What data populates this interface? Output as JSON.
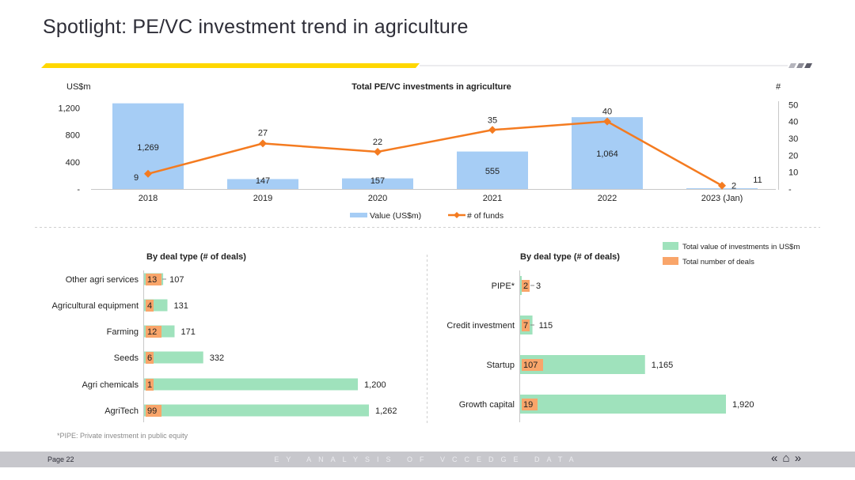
{
  "title": "Spotlight: PE/VC investment trend in agriculture",
  "footnote": "*PIPE: Private investment in public equity",
  "footer": {
    "page": "Page 22",
    "center_text": "EY ANALYSIS OF VCCEDGE DATA",
    "nav_prev": "«",
    "nav_home": "⌂",
    "nav_next": "»"
  },
  "colors": {
    "bar_blue": "#a6cdf5",
    "line_orange": "#f47b20",
    "bar_green": "#9fe2bc",
    "bar_orange": "#f9a56a",
    "accent_yellow": "#ffd700"
  },
  "chart_data": [
    {
      "type": "bar",
      "title": "Total PE/VC investments in agriculture",
      "ylabel": "US$m",
      "y2label": "#",
      "categories": [
        "2018",
        "2019",
        "2020",
        "2021",
        "2022",
        "2023 (Jan)"
      ],
      "y_ticks": [
        "-",
        "400",
        "800",
        "1,200"
      ],
      "y2_ticks": [
        "-",
        "10",
        "20",
        "30",
        "40",
        "50"
      ],
      "ylim": [
        0,
        1300
      ],
      "y2lim": [
        0,
        52
      ],
      "series": [
        {
          "name": "Value (US$m)",
          "type": "bar",
          "values": [
            1269,
            147,
            157,
            555,
            1064,
            11
          ],
          "labels": [
            "1,269",
            "147",
            "157",
            "555",
            "1,064",
            "11"
          ]
        },
        {
          "name": "# of funds",
          "type": "line",
          "axis": "secondary",
          "values": [
            9,
            27,
            22,
            35,
            40,
            2
          ],
          "labels": [
            "9",
            "27",
            "22",
            "35",
            "40",
            "2"
          ]
        }
      ],
      "legend": "bottom"
    },
    {
      "type": "bar",
      "title": "By deal type (# of deals)",
      "orientation": "horizontal",
      "categories": [
        "Other agri services",
        "Agricultural equipment",
        "Farming",
        "Seeds",
        "Agri chemicals",
        "AgriTech"
      ],
      "series": [
        {
          "name": "Total value of investments in US$m",
          "values": [
            107,
            131,
            171,
            332,
            1200,
            1262
          ],
          "labels": [
            "107",
            "131",
            "171",
            "332",
            "1,200",
            "1,262"
          ]
        },
        {
          "name": "Total number of deals",
          "values": [
            13,
            4,
            12,
            6,
            1,
            99
          ],
          "labels": [
            "13",
            "4",
            "12",
            "6",
            "1",
            "99"
          ]
        }
      ],
      "xlim": [
        0,
        1300
      ]
    },
    {
      "type": "bar",
      "title": "By deal type (# of deals)",
      "orientation": "horizontal",
      "categories": [
        "PIPE*",
        "Credit investment",
        "Startup",
        "Growth capital"
      ],
      "series": [
        {
          "name": "Total value of investments in US$m",
          "values": [
            3,
            115,
            1165,
            1920
          ],
          "labels": [
            "3",
            "115",
            "1,165",
            "1,920"
          ]
        },
        {
          "name": "Total number of deals",
          "values": [
            2,
            7,
            107,
            19
          ],
          "labels": [
            "2",
            "7",
            "107",
            "19"
          ]
        }
      ],
      "xlim": [
        0,
        1960
      ],
      "legend": "top-right"
    }
  ]
}
